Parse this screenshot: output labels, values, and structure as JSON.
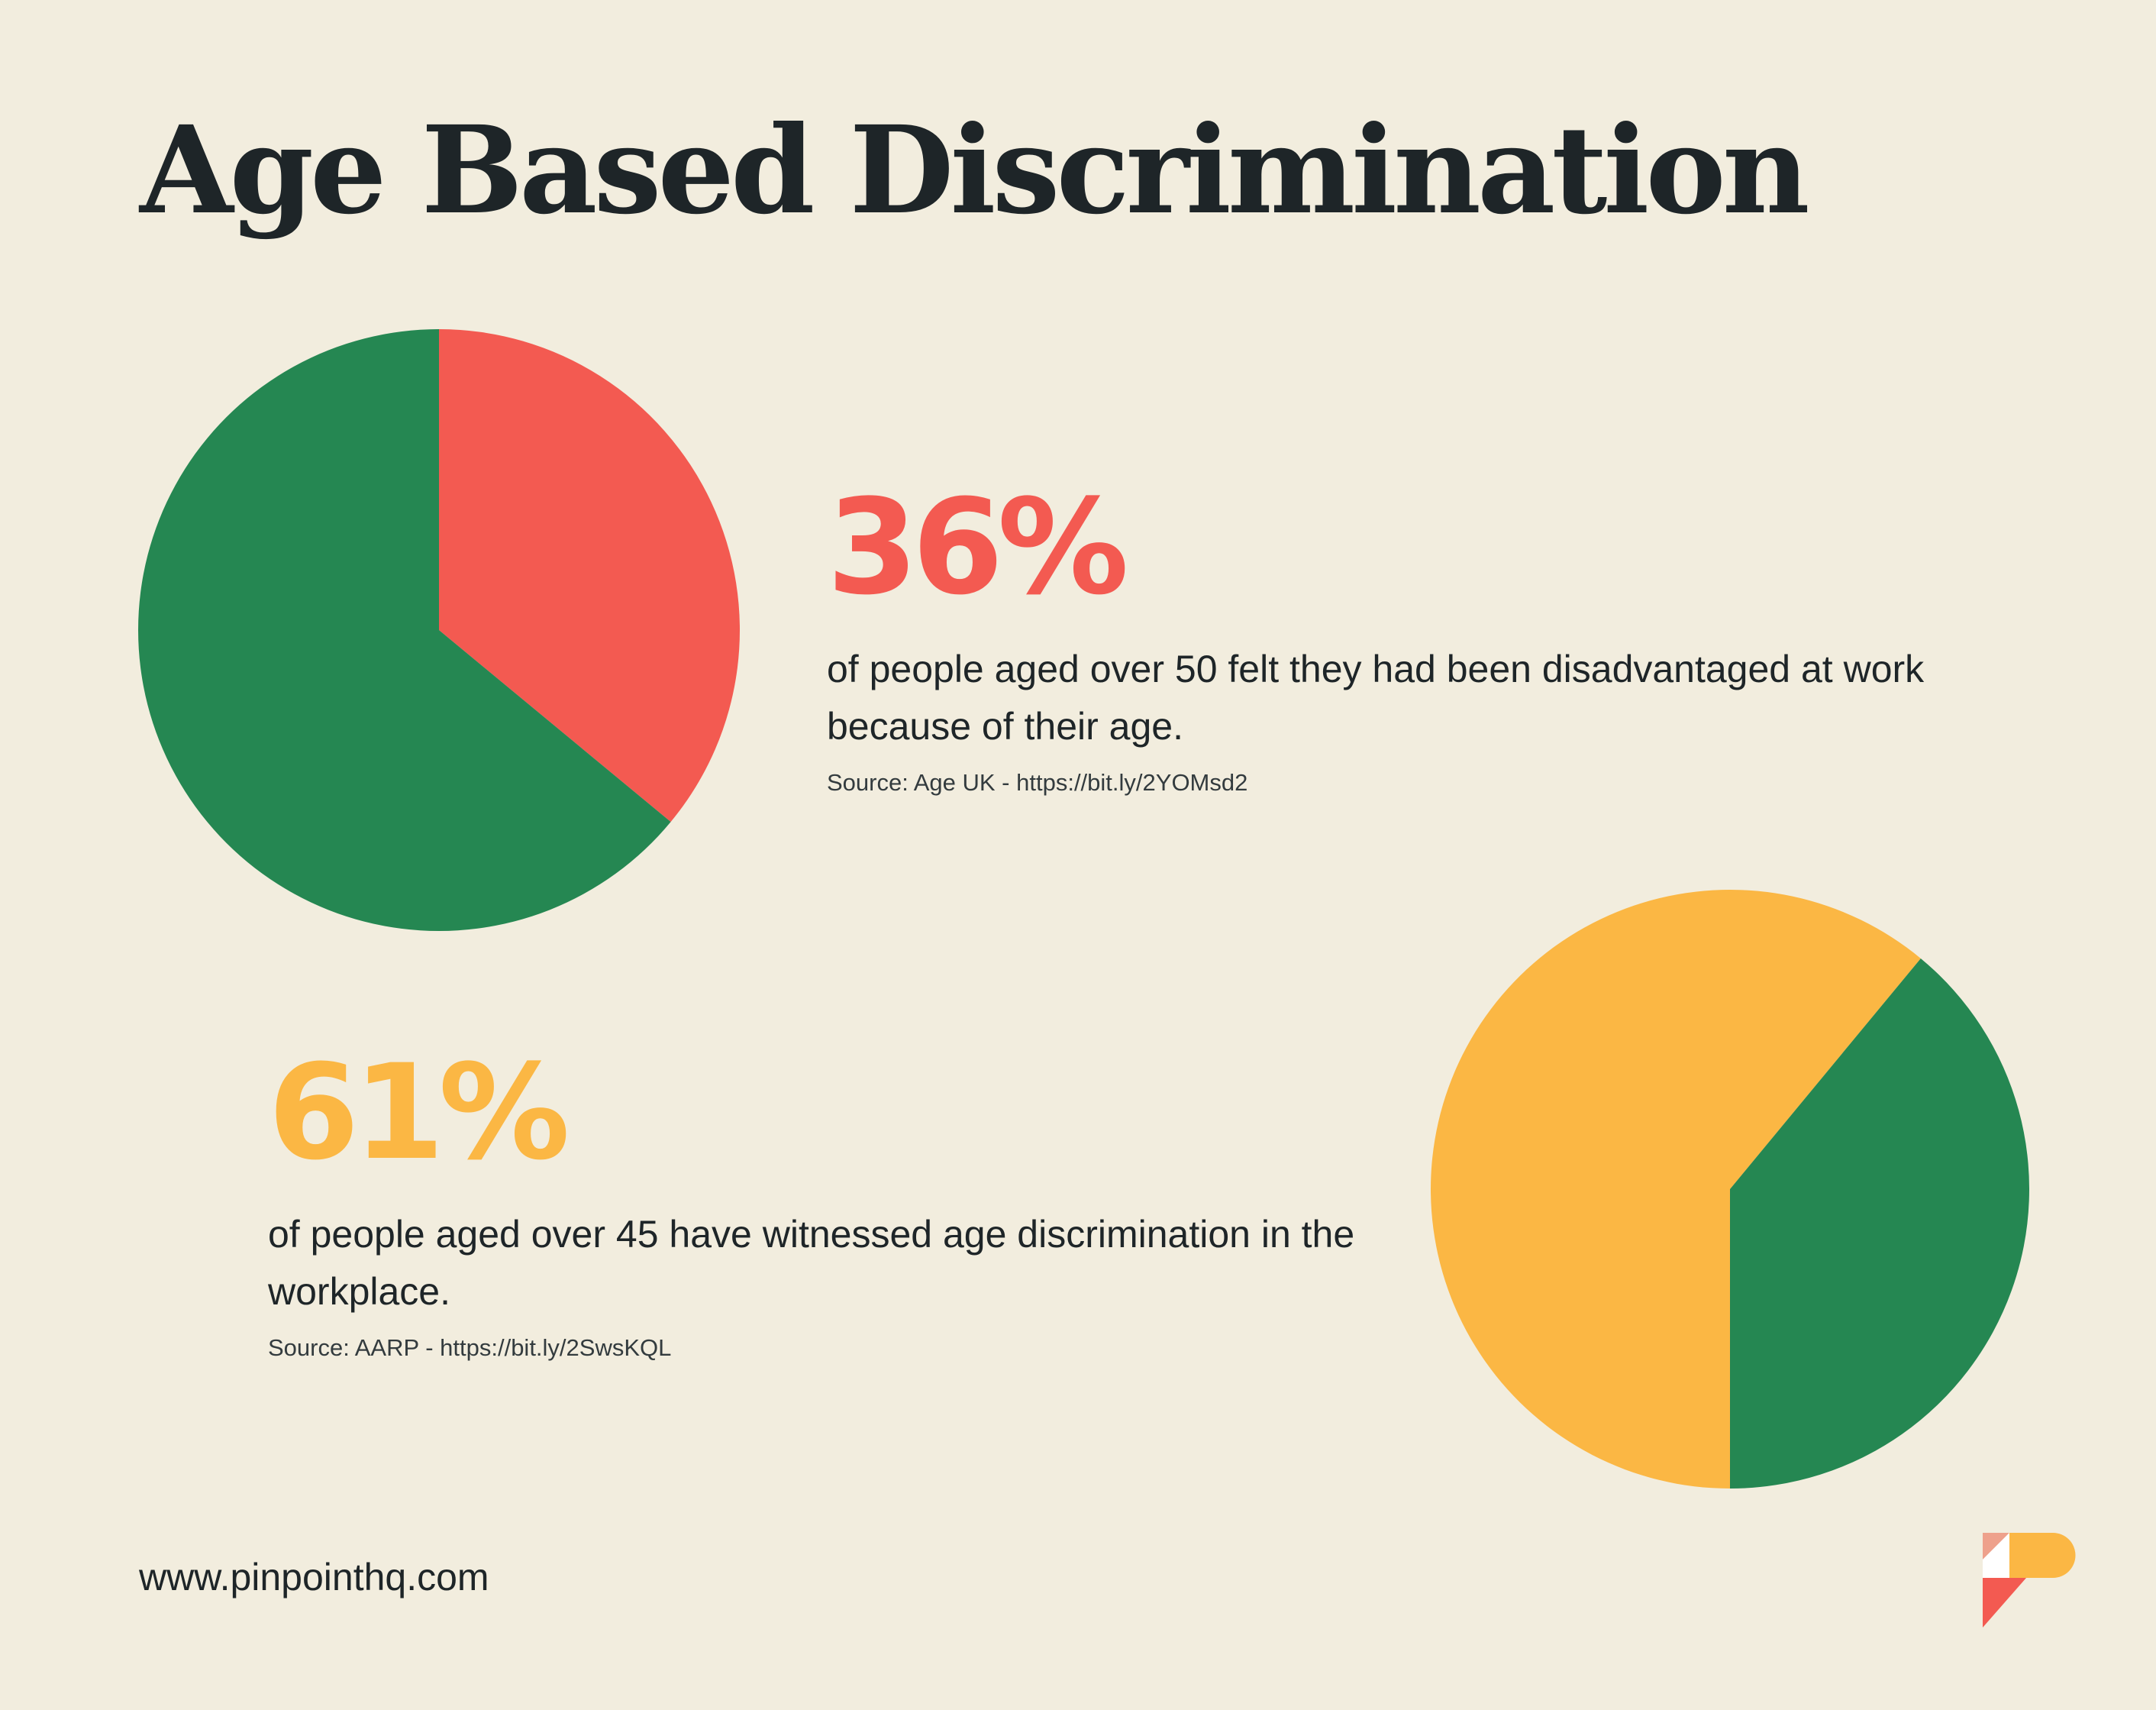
{
  "title": "Age Based Discrimination",
  "colors": {
    "background": "#F2EDDE",
    "green": "#258752",
    "red": "#F35A51",
    "yellow": "#FBB744",
    "text": "#1E2528",
    "logo_pink": "#EEA18C"
  },
  "stats": [
    {
      "value": "36%",
      "description": "of people aged over 50 felt they had been disadvantaged at work because of their age.",
      "source": "Source: Age UK - https://bit.ly/2YOMsd2"
    },
    {
      "value": "61%",
      "description": "of people aged over 45 have witnessed age discrimination in the workplace.",
      "source": "Source: AARP - https://bit.ly/2SwsKQL"
    }
  ],
  "chart_data": [
    {
      "type": "pie",
      "title": "",
      "values": [
        36,
        64
      ],
      "colors": [
        "#F35A51",
        "#258752"
      ]
    },
    {
      "type": "pie",
      "title": "",
      "values": [
        61,
        39
      ],
      "colors": [
        "#FBB744",
        "#258752"
      ]
    }
  ],
  "footer": {
    "website": "www.pinpointhq.com",
    "logo_icon": "pinpoint-logo-icon"
  }
}
